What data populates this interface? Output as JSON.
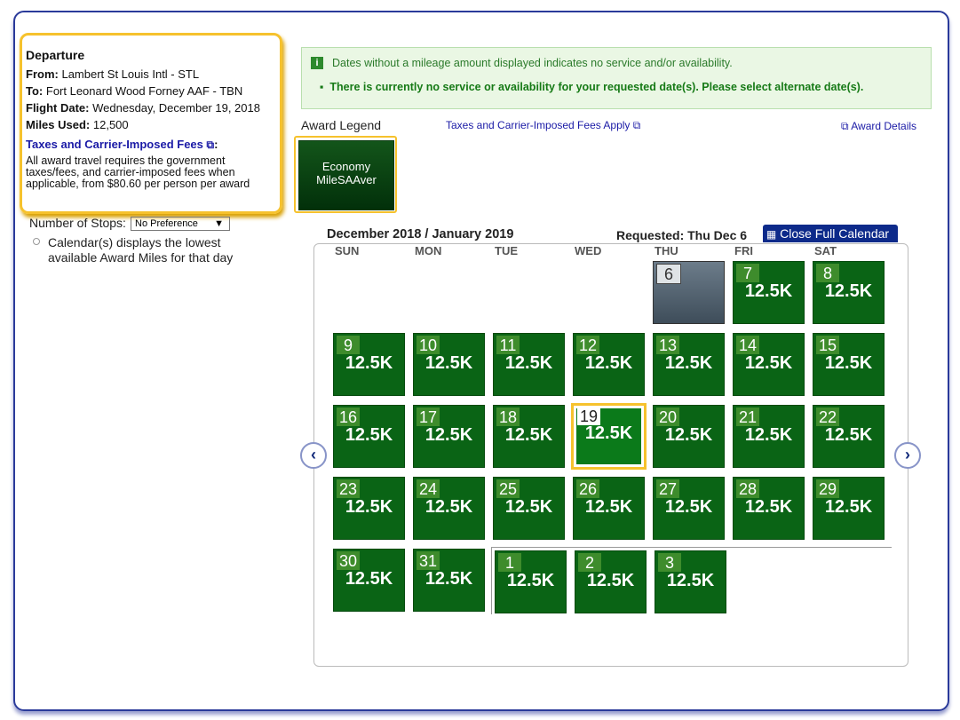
{
  "departure": {
    "title": "Departure",
    "from_label": "From:",
    "from": "Lambert St Louis Intl - STL",
    "to_label": "To:",
    "to": "Fort Leonard Wood Forney AAF - TBN",
    "date_label": "Flight Date:",
    "date": "Wednesday, December 19, 2018",
    "miles_label": "Miles Used:",
    "miles": "12,500",
    "fees_link": "Taxes and Carrier-Imposed Fees",
    "fees_colon": ":",
    "fees_text": "All award travel requires the government taxes/fees, and carrier-imposed fees when applicable, from $80.60 per person per award"
  },
  "stops": {
    "label": "Number of Stops:",
    "value": "No Preference",
    "note": "Calendar(s) displays the lowest available Award Miles for that day"
  },
  "notice": {
    "info": "Dates without a mileage amount displayed indicates no service and/or availability.",
    "error": "There is currently no service or availability for your requested date(s). Please select alternate date(s)."
  },
  "legend": {
    "title": "Award Legend",
    "taxes_link": "Taxes and Carrier-Imposed Fees Apply",
    "details_link": "Award Details",
    "award": [
      "Economy",
      "MileSAAver"
    ]
  },
  "calendar": {
    "title": "December 2018 / January 2019",
    "requested": "Requested: Thu Dec 6",
    "close": "Close Full Calendar",
    "weekdays": [
      "SUN",
      "MON",
      "TUE",
      "WED",
      "THU",
      "FRI",
      "SAT"
    ],
    "months": [
      {
        "days": [
          {
            "day": "6"
          },
          {
            "day": "7",
            "miles": "12.5K"
          },
          {
            "day": "8",
            "miles": "12.5K"
          },
          {
            "day": "9",
            "miles": "12.5K"
          },
          {
            "day": "10",
            "miles": "12.5K"
          },
          {
            "day": "11",
            "miles": "12.5K"
          },
          {
            "day": "12",
            "miles": "12.5K"
          },
          {
            "day": "13",
            "miles": "12.5K"
          },
          {
            "day": "14",
            "miles": "12.5K"
          },
          {
            "day": "15",
            "miles": "12.5K"
          },
          {
            "day": "16",
            "miles": "12.5K"
          },
          {
            "day": "17",
            "miles": "12.5K"
          },
          {
            "day": "18",
            "miles": "12.5K"
          },
          {
            "day": "19",
            "miles": "12.5K",
            "selected": true
          },
          {
            "day": "20",
            "miles": "12.5K"
          },
          {
            "day": "21",
            "miles": "12.5K"
          },
          {
            "day": "22",
            "miles": "12.5K"
          },
          {
            "day": "23",
            "miles": "12.5K"
          },
          {
            "day": "24",
            "miles": "12.5K"
          },
          {
            "day": "25",
            "miles": "12.5K"
          },
          {
            "day": "26",
            "miles": "12.5K"
          },
          {
            "day": "27",
            "miles": "12.5K"
          },
          {
            "day": "28",
            "miles": "12.5K"
          },
          {
            "day": "29",
            "miles": "12.5K"
          },
          {
            "day": "30",
            "miles": "12.5K"
          },
          {
            "day": "31",
            "miles": "12.5K"
          }
        ]
      },
      {
        "days": [
          {
            "day": "1",
            "miles": "12.5K"
          },
          {
            "day": "2",
            "miles": "12.5K"
          },
          {
            "day": "3",
            "miles": "12.5K"
          }
        ]
      }
    ]
  }
}
